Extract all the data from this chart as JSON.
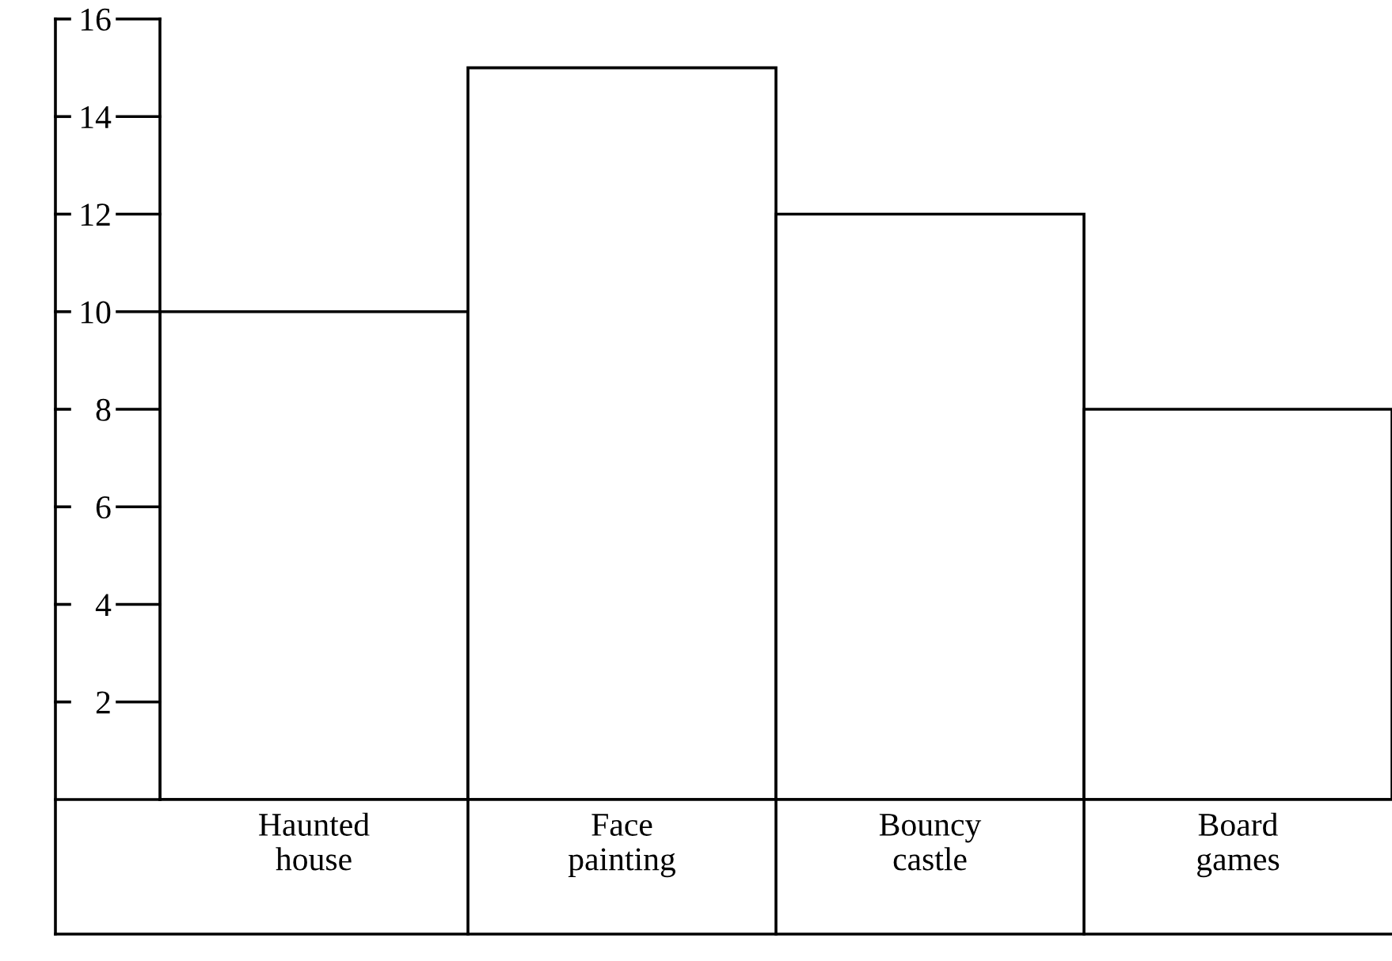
{
  "chart_data": {
    "type": "bar",
    "categories": [
      "Haunted\nhouse",
      "Face\npainting",
      "Bouncy\ncastle",
      "Board\ngames"
    ],
    "values": [
      10,
      15,
      12,
      8
    ],
    "color": "#ffffff",
    "ylim": [
      0,
      16
    ],
    "yticks": [
      2,
      4,
      6,
      8,
      10,
      12,
      14,
      16
    ],
    "grid": false
  }
}
